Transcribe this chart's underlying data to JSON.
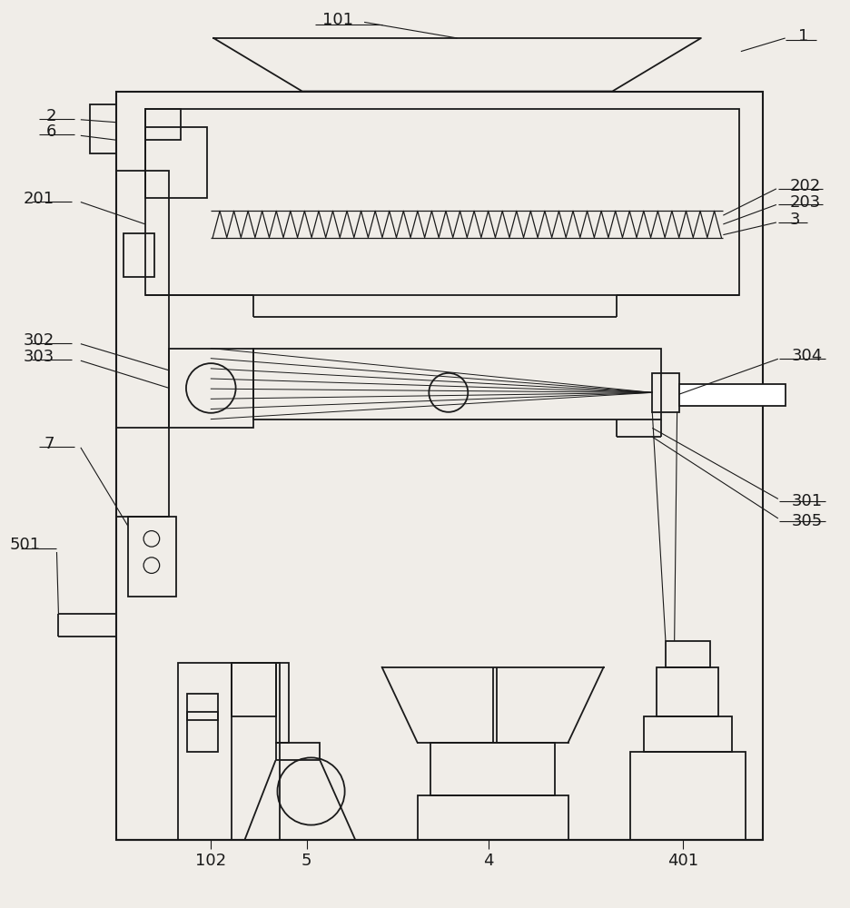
{
  "bg_color": "#f0ede8",
  "line_color": "#1a1a1a",
  "lw": 1.3,
  "fs": 13
}
